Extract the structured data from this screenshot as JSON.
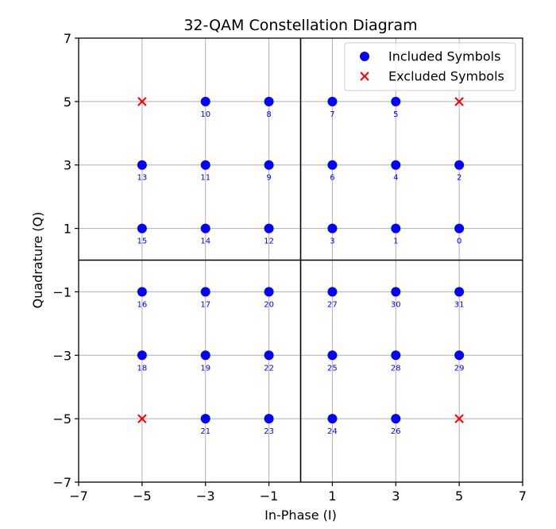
{
  "chart_data": {
    "type": "scatter",
    "title": "32-QAM Constellation Diagram",
    "xlabel": "In-Phase (I)",
    "ylabel": "Quadrature (Q)",
    "xlim": [
      -7,
      7
    ],
    "ylim": [
      -7,
      7
    ],
    "xticks": [
      -7,
      -5,
      -3,
      -1,
      1,
      3,
      5,
      7
    ],
    "yticks": [
      -7,
      -5,
      -3,
      -1,
      1,
      3,
      5,
      7
    ],
    "xtick_labels": [
      "−7",
      "−5",
      "−3",
      "−1",
      "1",
      "3",
      "5",
      "7"
    ],
    "ytick_labels": [
      "−7",
      "−5",
      "−3",
      "−1",
      "1",
      "3",
      "5",
      "7"
    ],
    "grid": true,
    "axis_lines_at_zero": true,
    "legend_position": "top-right",
    "series": [
      {
        "name": "Included Symbols",
        "marker": "circle",
        "color": "#0000ff",
        "points": [
          {
            "x": 5,
            "y": 1,
            "label": "0"
          },
          {
            "x": 3,
            "y": 1,
            "label": "1"
          },
          {
            "x": 5,
            "y": 3,
            "label": "2"
          },
          {
            "x": 1,
            "y": 1,
            "label": "3"
          },
          {
            "x": 3,
            "y": 3,
            "label": "4"
          },
          {
            "x": 3,
            "y": 5,
            "label": "5"
          },
          {
            "x": 1,
            "y": 3,
            "label": "6"
          },
          {
            "x": 1,
            "y": 5,
            "label": "7"
          },
          {
            "x": -1,
            "y": 5,
            "label": "8"
          },
          {
            "x": -1,
            "y": 3,
            "label": "9"
          },
          {
            "x": -3,
            "y": 5,
            "label": "10"
          },
          {
            "x": -3,
            "y": 3,
            "label": "11"
          },
          {
            "x": -1,
            "y": 1,
            "label": "12"
          },
          {
            "x": -5,
            "y": 3,
            "label": "13"
          },
          {
            "x": -3,
            "y": 1,
            "label": "14"
          },
          {
            "x": -5,
            "y": 1,
            "label": "15"
          },
          {
            "x": -5,
            "y": -1,
            "label": "16"
          },
          {
            "x": -3,
            "y": -1,
            "label": "17"
          },
          {
            "x": -5,
            "y": -3,
            "label": "18"
          },
          {
            "x": -3,
            "y": -3,
            "label": "19"
          },
          {
            "x": -1,
            "y": -1,
            "label": "20"
          },
          {
            "x": -3,
            "y": -5,
            "label": "21"
          },
          {
            "x": -1,
            "y": -3,
            "label": "22"
          },
          {
            "x": -1,
            "y": -5,
            "label": "23"
          },
          {
            "x": 1,
            "y": -5,
            "label": "24"
          },
          {
            "x": 1,
            "y": -3,
            "label": "25"
          },
          {
            "x": 3,
            "y": -5,
            "label": "26"
          },
          {
            "x": 1,
            "y": -1,
            "label": "27"
          },
          {
            "x": 3,
            "y": -3,
            "label": "28"
          },
          {
            "x": 5,
            "y": -3,
            "label": "29"
          },
          {
            "x": 3,
            "y": -1,
            "label": "30"
          },
          {
            "x": 5,
            "y": -1,
            "label": "31"
          }
        ]
      },
      {
        "name": "Excluded Symbols",
        "marker": "x",
        "color": "#ff0000",
        "points": [
          {
            "x": -5,
            "y": 5
          },
          {
            "x": 5,
            "y": 5
          },
          {
            "x": -5,
            "y": -5
          },
          {
            "x": 5,
            "y": -5
          }
        ]
      }
    ]
  }
}
